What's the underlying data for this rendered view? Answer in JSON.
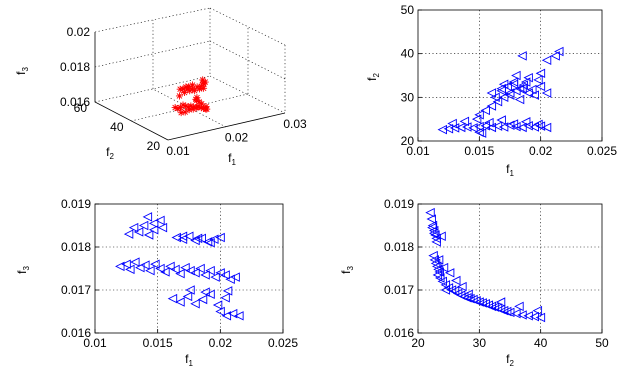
{
  "chart_data": [
    {
      "type": "scatter",
      "projection": "3d",
      "marker": "star",
      "color": "#ff0000",
      "xlabel": "f",
      "xlabel_sub": "1",
      "ylabel": "f",
      "ylabel_sub": "2",
      "zlabel": "f",
      "zlabel_sub": "3",
      "xlim": [
        0.01,
        0.03
      ],
      "ylim": [
        20,
        60
      ],
      "zlim": [
        0.016,
        0.02
      ],
      "xticks": [
        "0.01",
        "0.02",
        "0.03"
      ],
      "yticks": [
        "20",
        "40",
        "60"
      ],
      "zticks": [
        "0.016",
        "0.018",
        "0.02"
      ],
      "grid": true,
      "x": [
        0.012,
        0.0125,
        0.013,
        0.0135,
        0.014,
        0.0145,
        0.015,
        0.0155,
        0.016,
        0.0165,
        0.017,
        0.0175,
        0.018,
        0.0185,
        0.019,
        0.0195,
        0.02,
        0.0205,
        0.021,
        0.0215,
        0.0128,
        0.0138,
        0.0148,
        0.0158,
        0.0168,
        0.0178,
        0.0188,
        0.0198,
        0.0142,
        0.0152,
        0.0162,
        0.0172,
        0.0182,
        0.0192,
        0.0152,
        0.016,
        0.0168,
        0.0176,
        0.0184,
        0.0135,
        0.0145,
        0.0155,
        0.0165,
        0.0175
      ],
      "y": [
        22.5,
        22.6,
        22.8,
        23.0,
        23.1,
        23.3,
        23.5,
        23.6,
        23.8,
        24.0,
        24.2,
        24.5,
        25.0,
        26.0,
        28.0,
        32.0,
        35.0,
        38.0,
        40.0,
        41.0,
        22.7,
        23.1,
        23.5,
        24.0,
        24.5,
        25.5,
        28.5,
        31.0,
        22.9,
        23.3,
        23.9,
        24.8,
        27.0,
        30.5,
        30.0,
        31.0,
        32.0,
        33.0,
        33.5,
        24.0,
        25.0,
        26.0,
        27.0,
        28.0
      ],
      "z": [
        0.0176,
        0.0175,
        0.0175,
        0.0176,
        0.0175,
        0.0174,
        0.0174,
        0.0173,
        0.0172,
        0.0172,
        0.0171,
        0.017,
        0.0169,
        0.0168,
        0.0168,
        0.0167,
        0.0166,
        0.0165,
        0.0164,
        0.0164,
        0.0182,
        0.0183,
        0.0183,
        0.0182,
        0.0182,
        0.0181,
        0.0181,
        0.018,
        0.0185,
        0.0184,
        0.0184,
        0.0183,
        0.0183,
        0.0182,
        0.018,
        0.0179,
        0.0179,
        0.0178,
        0.0178,
        0.0171,
        0.017,
        0.017,
        0.0169,
        0.0169
      ]
    },
    {
      "type": "scatter",
      "marker": "triangle-left",
      "color": "#0000ff",
      "xlabel": "f",
      "xlabel_sub": "1",
      "ylabel": "f",
      "ylabel_sub": "2",
      "xlim": [
        0.01,
        0.025
      ],
      "ylim": [
        20,
        50
      ],
      "xticks": [
        "0.01",
        "0.015",
        "0.02",
        "0.025"
      ],
      "yticks": [
        "20",
        "30",
        "40",
        "50"
      ],
      "grid": true,
      "x": [
        0.012,
        0.0125,
        0.013,
        0.0135,
        0.014,
        0.0145,
        0.015,
        0.0155,
        0.016,
        0.0165,
        0.017,
        0.0175,
        0.018,
        0.0185,
        0.019,
        0.0195,
        0.02,
        0.0205,
        0.0128,
        0.0138,
        0.0148,
        0.0158,
        0.0168,
        0.0178,
        0.0188,
        0.0198,
        0.015,
        0.0155,
        0.016,
        0.0165,
        0.017,
        0.0175,
        0.018,
        0.0185,
        0.019,
        0.0195,
        0.02,
        0.0205,
        0.0163,
        0.0168,
        0.0173,
        0.0178,
        0.0183,
        0.0188,
        0.0193,
        0.0198,
        0.016,
        0.017,
        0.018,
        0.019,
        0.0168,
        0.0175,
        0.0183,
        0.0178,
        0.0186,
        0.02,
        0.0185,
        0.0205,
        0.0212,
        0.0215,
        0.015,
        0.0152
      ],
      "y": [
        22.6,
        22.8,
        23.0,
        23.1,
        23.2,
        23.0,
        23.3,
        23.5,
        23.1,
        23.4,
        23.2,
        23.6,
        23.3,
        23.1,
        23.5,
        23.2,
        23.4,
        23.1,
        24.0,
        24.5,
        25.0,
        24.2,
        24.8,
        23.9,
        24.4,
        23.8,
        26.0,
        27.0,
        28.0,
        29.0,
        30.0,
        31.0,
        31.5,
        32.0,
        31.0,
        30.5,
        32.5,
        31.0,
        30.0,
        31.5,
        32.5,
        33.0,
        32.0,
        33.5,
        31.8,
        34.0,
        31.0,
        33.0,
        35.0,
        34.5,
        32.0,
        30.5,
        29.5,
        33.5,
        32.8,
        35.5,
        39.5,
        38.5,
        39.5,
        40.5,
        22.0,
        21.8
      ]
    },
    {
      "type": "scatter",
      "marker": "triangle-left",
      "color": "#0000ff",
      "xlabel": "f",
      "xlabel_sub": "1",
      "ylabel": "f",
      "ylabel_sub": "3",
      "xlim": [
        0.01,
        0.025
      ],
      "ylim": [
        0.016,
        0.019
      ],
      "xticks": [
        "0.01",
        "0.015",
        "0.02",
        "0.025"
      ],
      "yticks": [
        "0.016",
        "0.017",
        "0.018",
        "0.019"
      ],
      "grid": true,
      "x": [
        0.012,
        0.0125,
        0.0128,
        0.0132,
        0.0136,
        0.014,
        0.0144,
        0.0148,
        0.0152,
        0.0156,
        0.016,
        0.0164,
        0.0168,
        0.0172,
        0.0176,
        0.018,
        0.0184,
        0.0188,
        0.0192,
        0.0196,
        0.02,
        0.0204,
        0.0208,
        0.0212,
        0.0127,
        0.0131,
        0.0135,
        0.0139,
        0.0143,
        0.0147,
        0.0165,
        0.017,
        0.0175,
        0.018,
        0.0185,
        0.019,
        0.0195,
        0.02,
        0.0162,
        0.0168,
        0.0174,
        0.018,
        0.0186,
        0.0192,
        0.0198,
        0.0204,
        0.0142,
        0.0147,
        0.0152,
        0.017,
        0.0182,
        0.0192,
        0.0205,
        0.0154,
        0.02,
        0.021,
        0.0215,
        0.0176,
        0.0188,
        0.0206
      ],
      "y": [
        0.01755,
        0.0176,
        0.01748,
        0.01765,
        0.01752,
        0.01758,
        0.01745,
        0.0176,
        0.0175,
        0.01742,
        0.01755,
        0.01748,
        0.01738,
        0.01752,
        0.01745,
        0.0174,
        0.0175,
        0.01735,
        0.01745,
        0.0173,
        0.0174,
        0.01735,
        0.01725,
        0.0173,
        0.0183,
        0.01845,
        0.01835,
        0.0185,
        0.01828,
        0.0184,
        0.01822,
        0.01818,
        0.01825,
        0.01815,
        0.0182,
        0.01812,
        0.01818,
        0.01822,
        0.0168,
        0.01672,
        0.01685,
        0.01668,
        0.01678,
        0.0169,
        0.01665,
        0.01682,
        0.0187,
        0.01855,
        0.01862,
        0.01825,
        0.0182,
        0.0181,
        0.0164,
        0.01845,
        0.0165,
        0.01645,
        0.0164,
        0.017,
        0.01695,
        0.01698
      ]
    },
    {
      "type": "scatter",
      "marker": "triangle-left",
      "color": "#0000ff",
      "xlabel": "f",
      "xlabel_sub": "2",
      "ylabel": "f",
      "ylabel_sub": "3",
      "xlim": [
        20,
        50
      ],
      "ylim": [
        0.016,
        0.019
      ],
      "xticks": [
        "20",
        "30",
        "40",
        "50"
      ],
      "yticks": [
        "0.016",
        "0.017",
        "0.018",
        "0.019"
      ],
      "grid": true,
      "x": [
        22.0,
        22.2,
        22.4,
        22.6,
        22.8,
        23.0,
        22.5,
        22.7,
        22.9,
        23.1,
        23.3,
        23.5,
        23.2,
        23.6,
        24.0,
        24.5,
        25.0,
        25.5,
        26.0,
        26.5,
        27.0,
        27.5,
        28.0,
        28.5,
        29.0,
        29.5,
        30.0,
        30.5,
        31.0,
        31.5,
        32.0,
        32.5,
        33.0,
        33.5,
        34.0,
        34.5,
        35.0,
        36.0,
        37.0,
        38.0,
        39.0,
        40.0,
        22.3,
        22.6,
        23.0,
        23.4,
        24.2,
        25.2,
        26.2,
        27.2,
        28.2,
        33.5,
        36.5,
        39.5,
        24.5,
        23.8
      ],
      "y": [
        0.0188,
        0.01865,
        0.0185,
        0.01838,
        0.01828,
        0.0182,
        0.0178,
        0.0177,
        0.01762,
        0.01755,
        0.01748,
        0.01742,
        0.01735,
        0.01728,
        0.0172,
        0.01712,
        0.01705,
        0.017,
        0.01698,
        0.01692,
        0.01688,
        0.01685,
        0.01682,
        0.0168,
        0.01678,
        0.01675,
        0.01672,
        0.0167,
        0.01668,
        0.01665,
        0.01662,
        0.0166,
        0.01658,
        0.01655,
        0.01652,
        0.0165,
        0.01648,
        0.01645,
        0.01642,
        0.0164,
        0.01638,
        0.01636,
        0.01845,
        0.01832,
        0.01812,
        0.0177,
        0.01752,
        0.0174,
        0.01722,
        0.01708,
        0.0169,
        0.01672,
        0.01662,
        0.01652,
        0.017,
        0.01825
      ]
    }
  ]
}
